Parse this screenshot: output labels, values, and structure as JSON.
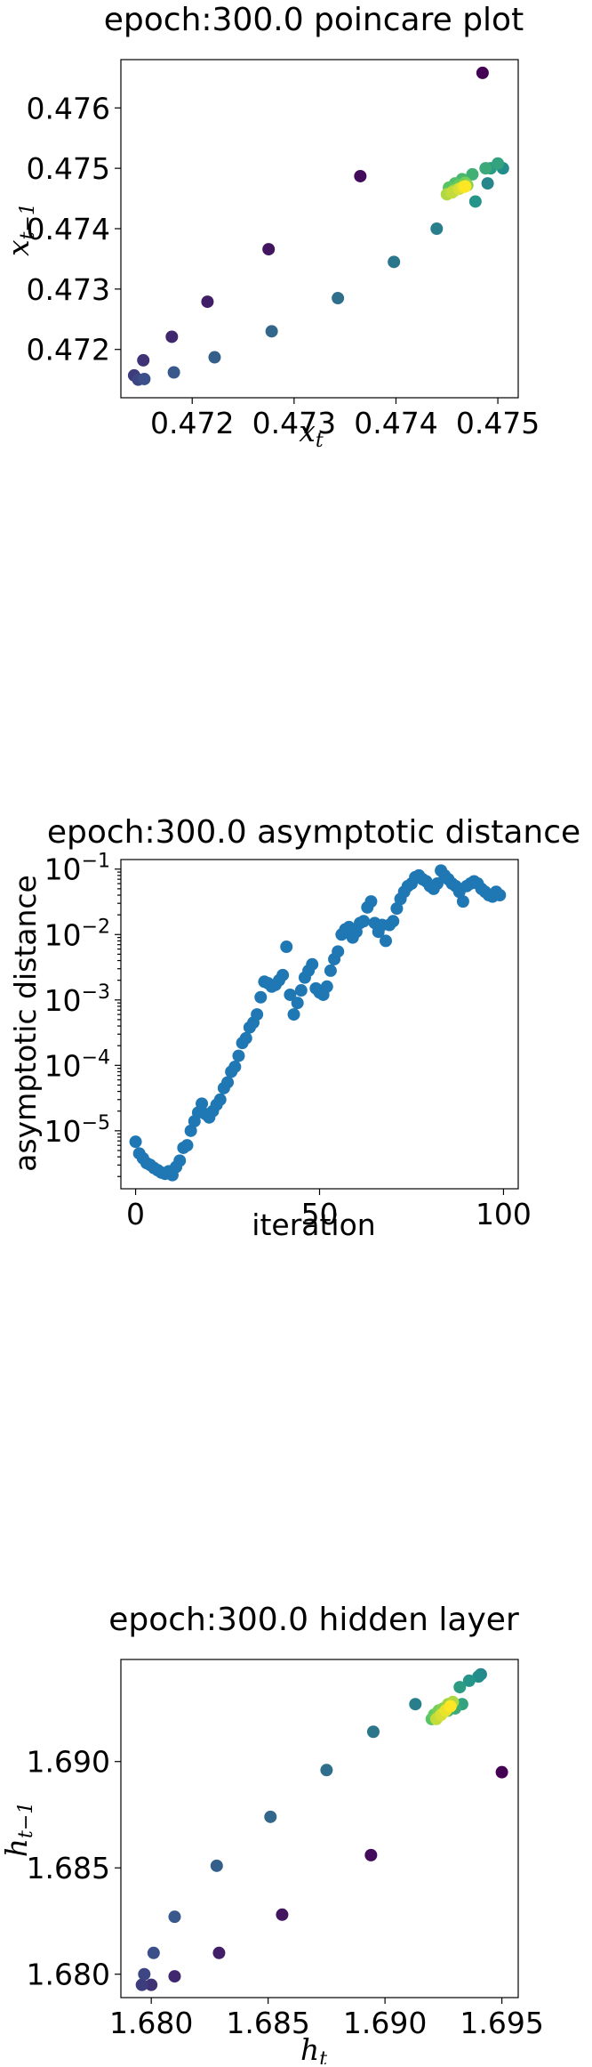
{
  "chart_data": [
    {
      "type": "scatter",
      "title": "epoch:300.0 poincare plot",
      "xlabel": "x",
      "xlabel_sub": "t",
      "ylabel": "x",
      "ylabel_sub": "t−1",
      "xlim": [
        0.4713,
        0.4752
      ],
      "ylim": [
        0.4712,
        0.4768
      ],
      "xticks": [
        0.472,
        0.473,
        0.474,
        0.475
      ],
      "xtick_labels": [
        "0.472",
        "0.473",
        "0.474",
        "0.475"
      ],
      "yticks": [
        0.472,
        0.473,
        0.474,
        0.475,
        0.476
      ],
      "ytick_labels": [
        "0.472",
        "0.473",
        "0.474",
        "0.475",
        "0.476"
      ],
      "colormap": "viridis",
      "points": [
        [
          0.47485,
          0.47658
        ],
        [
          0.47365,
          0.47487
        ],
        [
          0.47275,
          0.47366
        ],
        [
          0.47215,
          0.47279
        ],
        [
          0.4718,
          0.47221
        ],
        [
          0.47152,
          0.47182
        ],
        [
          0.47143,
          0.47157
        ],
        [
          0.47147,
          0.4715
        ],
        [
          0.47153,
          0.47151
        ],
        [
          0.47182,
          0.47162
        ],
        [
          0.47222,
          0.47187
        ],
        [
          0.47278,
          0.4723
        ],
        [
          0.47343,
          0.47285
        ],
        [
          0.47398,
          0.47345
        ],
        [
          0.4744,
          0.474
        ],
        [
          0.4749,
          0.47475
        ],
        [
          0.47505,
          0.475
        ],
        [
          0.47478,
          0.47445
        ],
        [
          0.47493,
          0.475
        ],
        [
          0.475,
          0.47508
        ],
        [
          0.47488,
          0.475
        ],
        [
          0.47475,
          0.4749
        ],
        [
          0.47465,
          0.47482
        ],
        [
          0.47458,
          0.47475
        ],
        [
          0.47452,
          0.47468
        ],
        [
          0.47462,
          0.47472
        ],
        [
          0.47468,
          0.47476
        ],
        [
          0.4747,
          0.47472
        ],
        [
          0.47457,
          0.47463
        ],
        [
          0.4745,
          0.47457
        ],
        [
          0.47455,
          0.4746
        ],
        [
          0.47462,
          0.47466
        ],
        [
          0.47466,
          0.47469
        ],
        [
          0.47468,
          0.4747
        ]
      ]
    },
    {
      "type": "scatter",
      "title": "epoch:300.0 asymptotic distance",
      "xlabel": "iteration",
      "ylabel": "asymptotic distance",
      "xlim": [
        -4,
        104
      ],
      "ylim": [
        1.3e-06,
        0.14
      ],
      "yscale": "log",
      "xticks": [
        0,
        50,
        100
      ],
      "xtick_labels": [
        "0",
        "50",
        "100"
      ],
      "yticks": [
        1e-05,
        0.0001,
        0.001,
        0.01,
        0.1
      ],
      "ytick_bases": [
        "10",
        "10",
        "10",
        "10",
        "10"
      ],
      "ytick_exps": [
        "−5",
        "−4",
        "−3",
        "−2",
        "−1"
      ],
      "color": "#1f77b4",
      "x": [
        0,
        1,
        2,
        3,
        4,
        5,
        6,
        7,
        8,
        9,
        10,
        11,
        12,
        13,
        14,
        15,
        16,
        17,
        18,
        19,
        20,
        21,
        22,
        23,
        24,
        25,
        26,
        27,
        28,
        29,
        30,
        31,
        32,
        33,
        34,
        35,
        36,
        37,
        38,
        39,
        40,
        41,
        42,
        43,
        44,
        45,
        46,
        47,
        48,
        49,
        50,
        51,
        52,
        53,
        54,
        55,
        56,
        57,
        58,
        59,
        60,
        61,
        62,
        63,
        64,
        65,
        66,
        67,
        68,
        69,
        70,
        71,
        72,
        73,
        74,
        75,
        76,
        77,
        78,
        79,
        80,
        81,
        82,
        83,
        84,
        85,
        86,
        87,
        88,
        89,
        90,
        91,
        92,
        93,
        94,
        95,
        96,
        97,
        98,
        99
      ],
      "y": [
        6.8e-06,
        4.5e-06,
        3.8e-06,
        3.2e-06,
        3e-06,
        2.7e-06,
        2.5e-06,
        2.3e-06,
        2.2e-06,
        2.4e-06,
        2.1e-06,
        2.8e-06,
        3.5e-06,
        5.5e-06,
        6e-06,
        1e-05,
        1.4e-05,
        1.9e-05,
        2.6e-05,
        1.8e-05,
        1.6e-05,
        2e-05,
        2.5e-05,
        3e-05,
        4.5e-05,
        5.5e-05,
        8e-05,
        9.5e-05,
        0.00014,
        0.00022,
        0.00026,
        0.00038,
        0.00045,
        0.0006,
        0.0011,
        0.0019,
        0.0018,
        0.0016,
        0.0017,
        0.002,
        0.0024,
        0.0065,
        0.0012,
        0.0006,
        0.0009,
        0.0014,
        0.0022,
        0.0028,
        0.0035,
        0.0015,
        0.0013,
        0.0012,
        0.0016,
        0.0028,
        0.0042,
        0.0055,
        0.01,
        0.012,
        0.013,
        0.009,
        0.011,
        0.015,
        0.016,
        0.026,
        0.032,
        0.015,
        0.011,
        0.014,
        0.008,
        0.014,
        0.016,
        0.025,
        0.035,
        0.045,
        0.055,
        0.06,
        0.075,
        0.08,
        0.07,
        0.065,
        0.055,
        0.05,
        0.06,
        0.095,
        0.08,
        0.07,
        0.06,
        0.055,
        0.045,
        0.032,
        0.055,
        0.06,
        0.065,
        0.06,
        0.05,
        0.045,
        0.04,
        0.038,
        0.045,
        0.04
      ]
    },
    {
      "type": "scatter",
      "title": "epoch:300.0 hidden layer",
      "xlabel": "h",
      "xlabel_sub": "t",
      "ylabel": "h",
      "ylabel_sub": "t−1",
      "xlim": [
        1.6787,
        1.6957
      ],
      "ylim": [
        1.6789,
        1.6948
      ],
      "xticks": [
        1.68,
        1.685,
        1.69,
        1.695
      ],
      "xtick_labels": [
        "1.680",
        "1.685",
        "1.690",
        "1.695"
      ],
      "yticks": [
        1.68,
        1.685,
        1.69
      ],
      "ytick_labels": [
        "1.680",
        "1.685",
        "1.690"
      ],
      "colormap": "viridis",
      "points": [
        [
          1.695,
          1.6895
        ],
        [
          1.6894,
          1.6856
        ],
        [
          1.6856,
          1.6828
        ],
        [
          1.6829,
          1.681
        ],
        [
          1.681,
          1.6799
        ],
        [
          1.68,
          1.6795
        ],
        [
          1.6796,
          1.6795
        ],
        [
          1.6797,
          1.68
        ],
        [
          1.6801,
          1.681
        ],
        [
          1.681,
          1.6827
        ],
        [
          1.6828,
          1.6851
        ],
        [
          1.6851,
          1.6874
        ],
        [
          1.6875,
          1.6896
        ],
        [
          1.6895,
          1.6914
        ],
        [
          1.6913,
          1.6927
        ],
        [
          1.6941,
          1.6941
        ],
        [
          1.694,
          1.694
        ],
        [
          1.6936,
          1.6938
        ],
        [
          1.6932,
          1.6935
        ],
        [
          1.6933,
          1.6927
        ],
        [
          1.693,
          1.6925
        ],
        [
          1.6927,
          1.6924
        ],
        [
          1.6924,
          1.6923
        ],
        [
          1.6922,
          1.6921
        ],
        [
          1.692,
          1.692
        ],
        [
          1.6921,
          1.6922
        ],
        [
          1.6923,
          1.6924
        ],
        [
          1.6925,
          1.6925
        ],
        [
          1.6927,
          1.6927
        ],
        [
          1.6929,
          1.6928
        ],
        [
          1.6922,
          1.692
        ],
        [
          1.6924,
          1.6922
        ],
        [
          1.6926,
          1.6924
        ],
        [
          1.6928,
          1.6926
        ]
      ]
    }
  ]
}
